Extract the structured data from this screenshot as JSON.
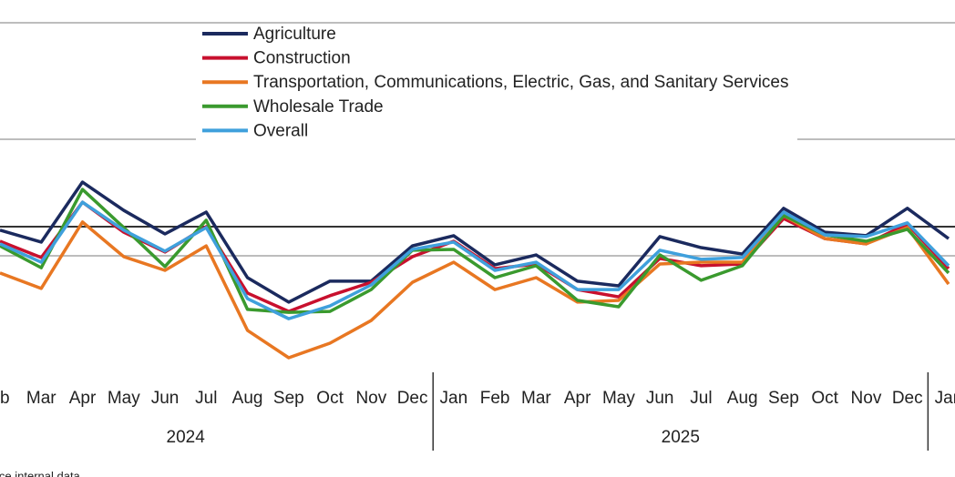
{
  "chart_data": {
    "type": "line",
    "categories": [
      "eb",
      "Mar",
      "Apr",
      "May",
      "Jun",
      "Jul",
      "Aug",
      "Sep",
      "Oct",
      "Nov",
      "Dec",
      "Jan",
      "Feb",
      "Mar",
      "Apr",
      "May",
      "Jun",
      "Jul",
      "Aug",
      "Sep",
      "Oct",
      "Nov",
      "Dec",
      "Jan"
    ],
    "x_groups": [
      "2024",
      "2025"
    ],
    "series": [
      {
        "name": "Agriculture",
        "color": "#1b2a5e",
        "values": [
          48.8,
          44.7,
          65.3,
          55.6,
          47.5,
          55,
          32.5,
          24.1,
          31.3,
          31.3,
          43.4,
          46.9,
          36.9,
          40.3,
          31.3,
          29.7,
          46.6,
          42.8,
          40.6,
          56.3,
          48.1,
          46.9,
          56.3,
          45.9
        ]
      },
      {
        "name": "Construction",
        "color": "#c8102e",
        "values": [
          45,
          39.4,
          58.4,
          48.1,
          41.3,
          50,
          27.2,
          20.9,
          26.3,
          30.9,
          39.7,
          45,
          35.6,
          37.2,
          28.4,
          25.9,
          39.1,
          36.6,
          37.2,
          52.8,
          45.9,
          44.1,
          50.9,
          35.6
        ]
      },
      {
        "name": "Transportation, Communications, Electric, Gas, and Sanitary Services",
        "color": "#e87722",
        "values": [
          34.1,
          28.8,
          51.6,
          39.7,
          35,
          43.4,
          14.4,
          5,
          10,
          17.8,
          30.9,
          37.8,
          28.4,
          32.5,
          24.1,
          24.7,
          37.2,
          37.8,
          37.8,
          53.8,
          45.9,
          44.1,
          49.7,
          30.3
        ]
      },
      {
        "name": "Wholesale Trade",
        "color": "#3a9a2e",
        "values": [
          43.4,
          35.9,
          62.8,
          49.7,
          36.3,
          52.2,
          21.6,
          20.6,
          20.9,
          28.4,
          41.9,
          42.2,
          32.5,
          36.6,
          24.7,
          22.5,
          40.3,
          31.6,
          36.6,
          53.8,
          47.2,
          45,
          49.1,
          34.1
        ]
      },
      {
        "name": "Overall",
        "color": "#3fa0dc",
        "values": [
          44.1,
          37.8,
          58.4,
          48.8,
          41.6,
          49.7,
          25.3,
          18.4,
          22.8,
          30,
          42.2,
          44.7,
          35,
          37.8,
          28.4,
          28.4,
          41.9,
          38.8,
          39.4,
          55,
          47.2,
          46.6,
          51.3,
          36.6
        ]
      }
    ],
    "ylim": [
      0,
      120
    ],
    "grid_lines": [
      40,
      80,
      120
    ],
    "reference_line": 50,
    "source": "ice internal data"
  }
}
